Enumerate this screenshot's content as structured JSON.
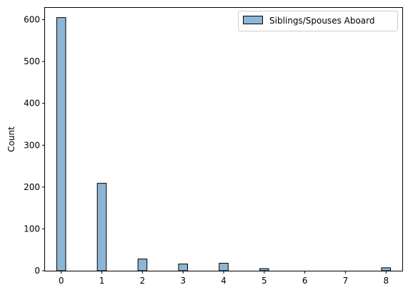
{
  "chart_data": {
    "type": "bar",
    "xlabel": "",
    "ylabel": "Count",
    "xlim": [
      -0.4,
      8.4
    ],
    "ylim": [
      0,
      630
    ],
    "x_ticks": [
      0,
      1,
      2,
      3,
      4,
      5,
      6,
      7,
      8
    ],
    "y_ticks": [
      0,
      100,
      200,
      300,
      400,
      500,
      600
    ],
    "bin_width": 0.2222,
    "bins": [
      {
        "x": 0,
        "value": 605
      },
      {
        "x": 1,
        "value": 209
      },
      {
        "x": 2,
        "value": 28
      },
      {
        "x": 3,
        "value": 16
      },
      {
        "x": 4,
        "value": 18
      },
      {
        "x": 5,
        "value": 5
      },
      {
        "x": 8,
        "value": 7
      }
    ],
    "series": [
      {
        "name": "Siblings/Spouses Aboard",
        "color": "#8db6d6",
        "edge_color": "#000000"
      }
    ],
    "legend": {
      "placement": "top-right"
    },
    "grid": false
  }
}
